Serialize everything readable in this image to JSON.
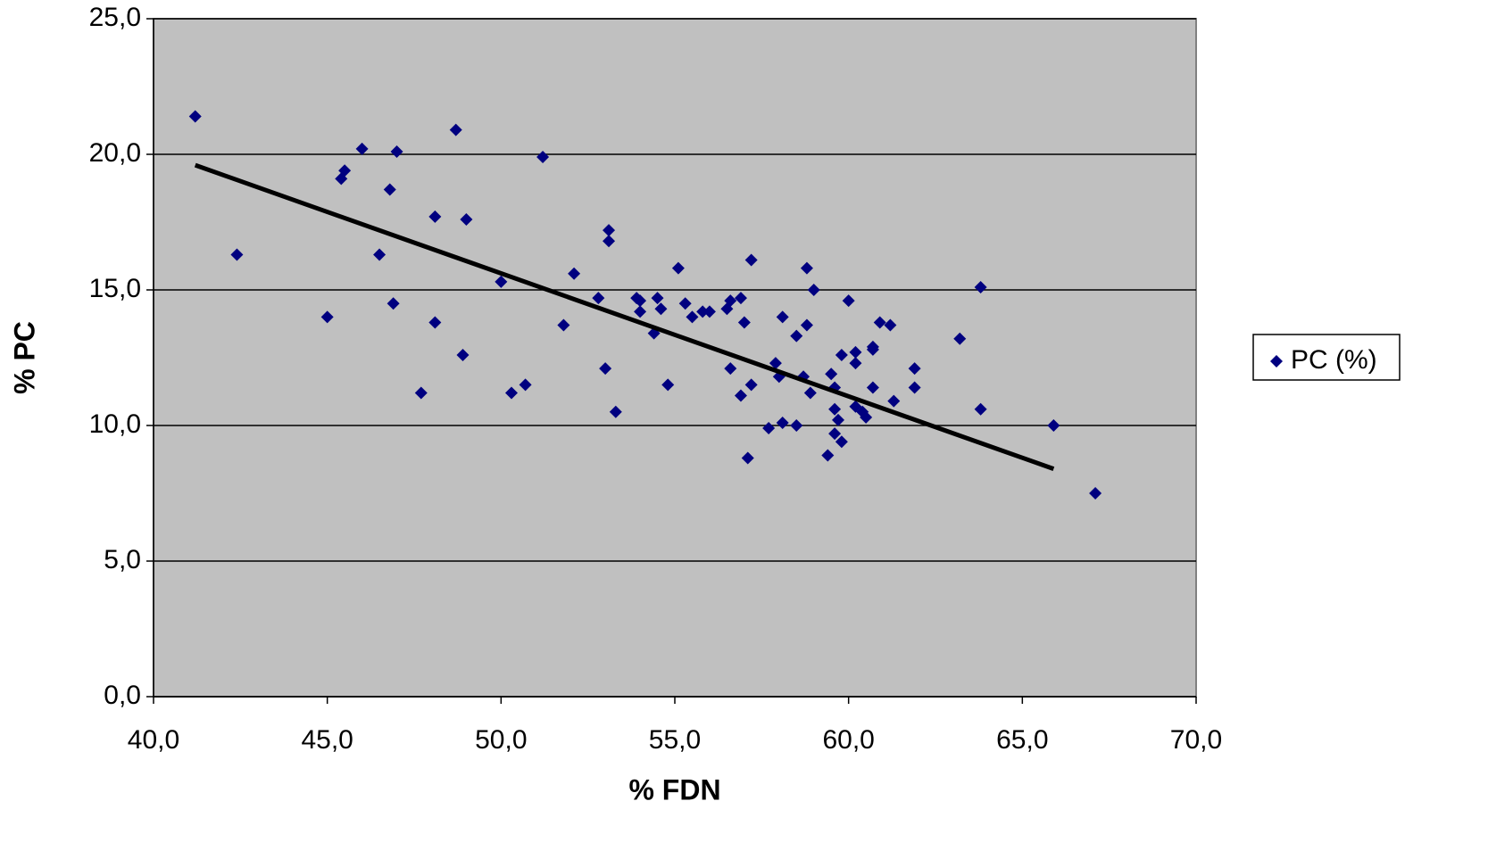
{
  "chart_data": {
    "type": "scatter",
    "xlabel": "% FDN",
    "ylabel": "% PC",
    "xlim": [
      40,
      70
    ],
    "xticks": [
      {
        "value": 40,
        "label": "40,0"
      },
      {
        "value": 45,
        "label": "45,0"
      },
      {
        "value": 50,
        "label": "50,0"
      },
      {
        "value": 55,
        "label": "55,0"
      },
      {
        "value": 60,
        "label": "60,0"
      },
      {
        "value": 65,
        "label": "65,0"
      },
      {
        "value": 70,
        "label": "70,0"
      }
    ],
    "ylim": [
      0,
      25
    ],
    "yticks": [
      {
        "value": 0,
        "label": "0,0"
      },
      {
        "value": 5,
        "label": "5,0"
      },
      {
        "value": 10,
        "label": "10,0"
      },
      {
        "value": 15,
        "label": "15,0"
      },
      {
        "value": 20,
        "label": "20,0"
      },
      {
        "value": 25,
        "label": "25,0"
      }
    ],
    "grid": true,
    "legend": "right",
    "series": [
      {
        "name": "PC (%)",
        "color": "#000080",
        "x": [
          41.2,
          42.4,
          45.0,
          45.4,
          45.5,
          46.0,
          46.5,
          46.8,
          46.9,
          47.0,
          47.7,
          48.1,
          48.1,
          48.7,
          48.9,
          49.0,
          50.0,
          50.3,
          50.7,
          51.2,
          51.8,
          52.1,
          52.8,
          53.0,
          53.1,
          53.1,
          53.3,
          53.9,
          54.0,
          54.0,
          54.4,
          54.5,
          54.6,
          54.8,
          55.1,
          55.3,
          55.5,
          55.8,
          56.0,
          56.5,
          56.6,
          56.6,
          56.9,
          56.9,
          57.0,
          57.1,
          57.2,
          57.2,
          57.7,
          57.9,
          58.0,
          58.1,
          58.1,
          58.5,
          58.5,
          58.7,
          58.8,
          58.8,
          58.9,
          59.0,
          59.4,
          59.5,
          59.6,
          59.6,
          59.6,
          59.7,
          59.8,
          59.8,
          60.0,
          60.2,
          60.2,
          60.2,
          60.4,
          60.5,
          60.7,
          60.7,
          60.7,
          60.9,
          61.2,
          61.3,
          61.9,
          61.9,
          63.2,
          63.8,
          63.8,
          65.9,
          67.1
        ],
        "values": [
          21.4,
          16.3,
          14.0,
          19.1,
          19.4,
          20.2,
          16.3,
          18.7,
          14.5,
          20.1,
          11.2,
          17.7,
          13.8,
          20.9,
          12.6,
          17.6,
          15.3,
          11.2,
          11.5,
          19.9,
          13.7,
          15.6,
          14.7,
          12.1,
          17.2,
          16.8,
          10.5,
          14.7,
          14.6,
          14.2,
          13.4,
          14.7,
          14.3,
          11.5,
          15.8,
          14.5,
          14.0,
          14.2,
          14.2,
          14.3,
          14.6,
          12.1,
          14.7,
          11.1,
          13.8,
          8.8,
          11.5,
          16.1,
          9.9,
          12.3,
          11.8,
          14.0,
          10.1,
          13.3,
          10.0,
          11.8,
          13.7,
          15.8,
          11.2,
          15.0,
          8.9,
          11.9,
          11.4,
          10.6,
          9.7,
          10.2,
          9.4,
          12.6,
          14.6,
          12.7,
          12.3,
          10.7,
          10.5,
          10.3,
          12.8,
          12.9,
          11.4,
          13.8,
          13.7,
          10.9,
          12.1,
          11.4,
          13.2,
          15.1,
          10.6,
          10.0,
          7.5
        ]
      }
    ],
    "trendline": {
      "color": "#000000",
      "x": [
        41.2,
        65.9
      ],
      "values": [
        19.6,
        8.4
      ]
    }
  }
}
